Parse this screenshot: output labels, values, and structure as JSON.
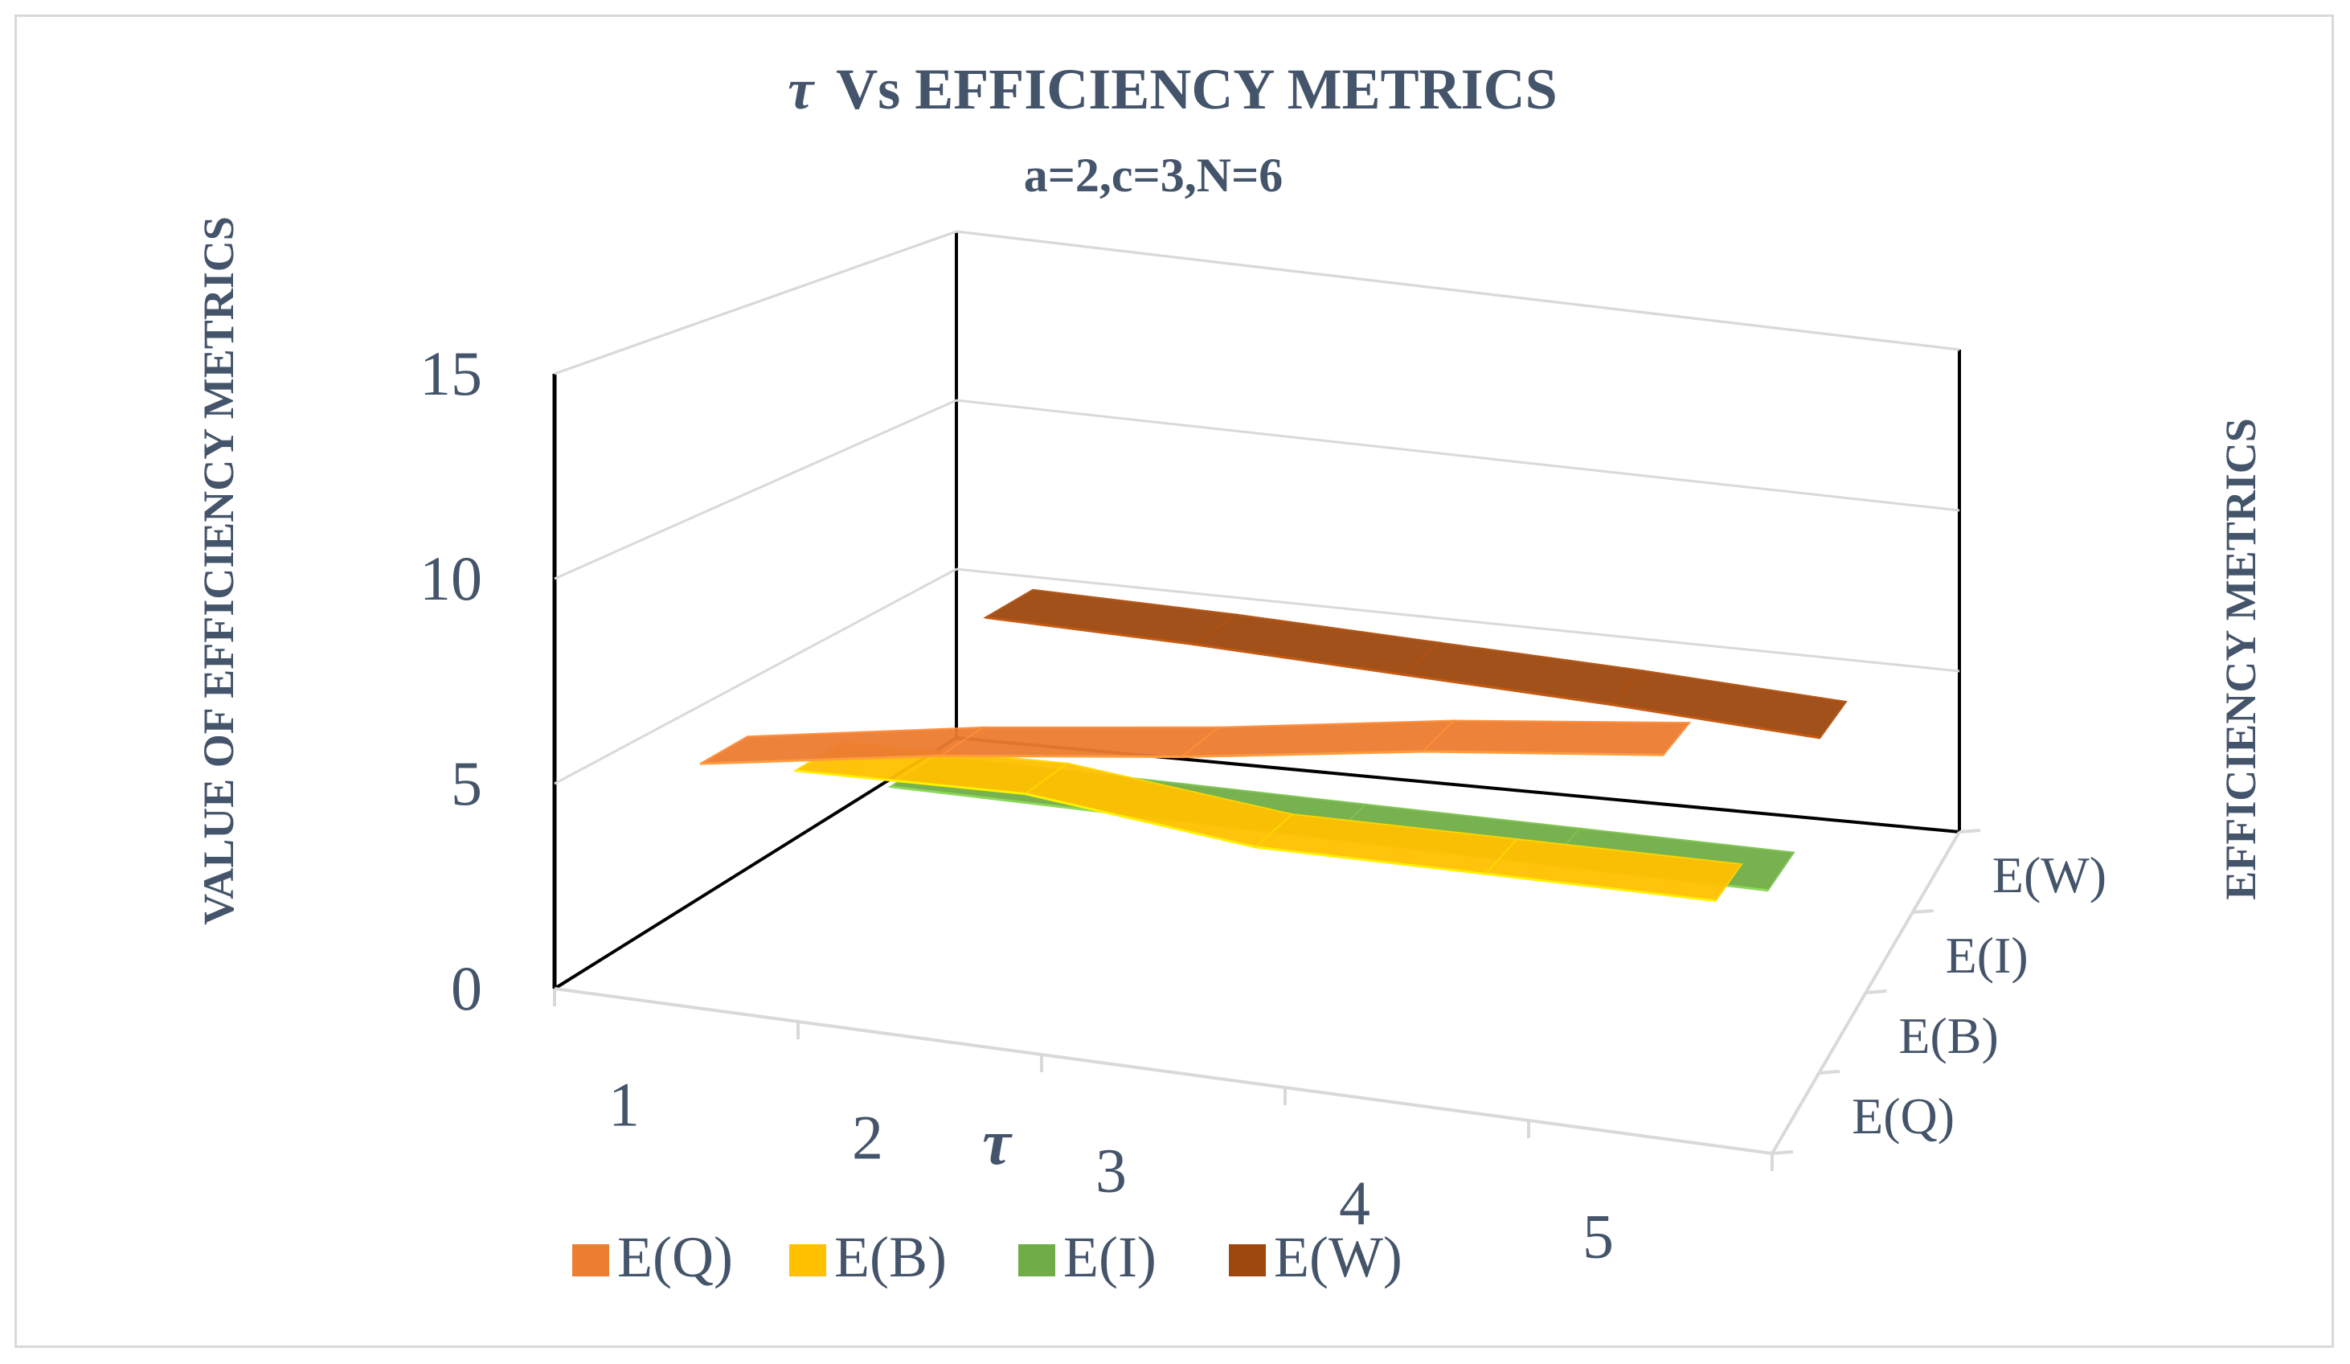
{
  "chart_data": {
    "type": "line",
    "style": "3d-ribbon",
    "title": "Vs EFFICIENCY METRICS",
    "title_symbol": "τ",
    "subtitle": "a=2,c=3,N=6",
    "xlabel": "τ",
    "ylabel": "VALUE OF EFFICIENCY METRICS",
    "zlabel": "EFFICIENCY METRICS",
    "categories": [
      "1",
      "2",
      "3",
      "4",
      "5"
    ],
    "y_ticks": [
      "0",
      "5",
      "10",
      "15"
    ],
    "ylim": [
      0,
      15
    ],
    "grid": true,
    "legend_position": "bottom",
    "series": [
      {
        "name": "E(Q)",
        "color": "#ed7d31",
        "values": [
          5.6,
          6.7,
          7.6,
          8.7,
          9.6
        ]
      },
      {
        "name": "E(B)",
        "color": "#ffc000",
        "values": [
          4.0,
          4.2,
          3.6,
          3.7,
          3.8
        ]
      },
      {
        "name": "E(I)",
        "color": "#70ad47",
        "values": [
          2.0,
          2.0,
          2.0,
          2.0,
          2.0
        ]
      },
      {
        "name": "E(W)",
        "color": "#9e480e",
        "values": [
          5.1,
          5.0,
          4.8,
          4.6,
          4.3
        ]
      }
    ],
    "depth_order": [
      "E(Q)",
      "E(B)",
      "E(I)",
      "E(W)"
    ]
  }
}
